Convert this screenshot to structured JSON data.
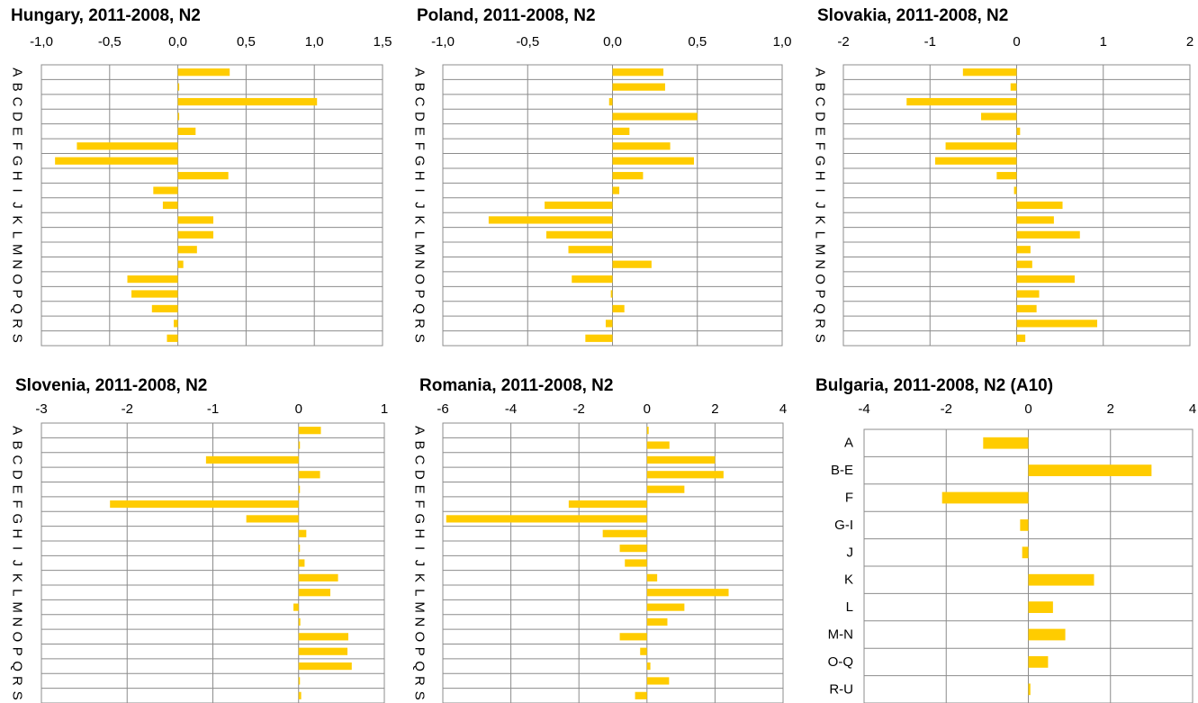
{
  "bar_color": "#FFCC00",
  "grid_color": "#8c8c8c",
  "chart_data": [
    {
      "type": "bar",
      "orientation": "horizontal",
      "title": "Hungary, 2011-2008, N2",
      "categories": [
        "A",
        "B",
        "C",
        "D",
        "E",
        "F",
        "G",
        "H",
        "I",
        "J",
        "K",
        "L",
        "M",
        "N",
        "O",
        "P",
        "Q",
        "R",
        "S"
      ],
      "values": [
        0.38,
        0.01,
        1.02,
        0.0,
        0.13,
        -0.74,
        -0.9,
        0.37,
        -0.18,
        -0.11,
        0.26,
        0.26,
        0.14,
        0.04,
        -0.37,
        -0.34,
        -0.19,
        -0.03,
        -0.08
      ],
      "xlim": [
        -1.0,
        1.5
      ],
      "xticks": [
        -1.0,
        -0.5,
        0.0,
        0.5,
        1.0,
        1.5
      ],
      "xtick_labels": [
        "-1,0",
        "-0,5",
        "0,0",
        "0,5",
        "1,0",
        "1,5"
      ],
      "grid": true
    },
    {
      "type": "bar",
      "orientation": "horizontal",
      "title": "Poland, 2011-2008, N2",
      "categories": [
        "A",
        "B",
        "C",
        "D",
        "E",
        "F",
        "G",
        "H",
        "I",
        "J",
        "K",
        "L",
        "M",
        "N",
        "O",
        "P",
        "Q",
        "R",
        "S"
      ],
      "values": [
        0.3,
        0.31,
        -0.02,
        0.5,
        0.1,
        0.34,
        0.48,
        0.18,
        0.04,
        -0.4,
        -0.73,
        -0.39,
        -0.26,
        0.23,
        -0.24,
        -0.01,
        0.07,
        -0.04,
        -0.16
      ],
      "xlim": [
        -1.0,
        1.0
      ],
      "xticks": [
        -1.0,
        -0.5,
        0.0,
        0.5,
        1.0
      ],
      "xtick_labels": [
        "-1,0",
        "-0,5",
        "0,0",
        "0,5",
        "1,0"
      ],
      "grid": true
    },
    {
      "type": "bar",
      "orientation": "horizontal",
      "title": "Slovakia, 2011-2008, N2",
      "categories": [
        "A",
        "B",
        "C",
        "D",
        "E",
        "F",
        "G",
        "H",
        "I",
        "J",
        "K",
        "L",
        "M",
        "N",
        "O",
        "P",
        "Q",
        "R",
        "S"
      ],
      "values": [
        -0.62,
        -0.07,
        -1.27,
        -0.41,
        0.04,
        -0.82,
        -0.94,
        -0.23,
        -0.03,
        0.53,
        0.43,
        0.73,
        0.16,
        0.18,
        0.67,
        0.26,
        0.23,
        0.93,
        0.1
      ],
      "xlim": [
        -2,
        2
      ],
      "xticks": [
        -2,
        -1,
        0,
        1,
        2
      ],
      "xtick_labels": [
        "-2",
        "-1",
        "0",
        "1",
        "2"
      ],
      "grid": true
    },
    {
      "type": "bar",
      "orientation": "horizontal",
      "title": "Slovenia, 2011-2008, N2",
      "categories": [
        "A",
        "B",
        "C",
        "D",
        "E",
        "F",
        "G",
        "H",
        "I",
        "J",
        "K",
        "L",
        "M",
        "N",
        "O",
        "P",
        "Q",
        "R",
        "S"
      ],
      "values": [
        0.26,
        0.01,
        -1.08,
        0.25,
        0.01,
        -2.2,
        -0.61,
        0.09,
        0.0,
        0.07,
        0.46,
        0.37,
        -0.06,
        0.02,
        0.58,
        0.57,
        0.62,
        0.01,
        0.03
      ],
      "xlim": [
        -3,
        1
      ],
      "xticks": [
        -3,
        -2,
        -1,
        0,
        1
      ],
      "xtick_labels": [
        "-3",
        "-2",
        "-1",
        "0",
        "1"
      ],
      "grid": true
    },
    {
      "type": "bar",
      "orientation": "horizontal",
      "title": "Romania, 2011-2008, N2",
      "categories": [
        "A",
        "B",
        "C",
        "D",
        "E",
        "F",
        "G",
        "H",
        "I",
        "J",
        "K",
        "L",
        "M",
        "N",
        "O",
        "P",
        "Q",
        "R",
        "S"
      ],
      "values": [
        0.05,
        0.66,
        2.0,
        2.25,
        1.1,
        -2.3,
        -5.9,
        -1.3,
        -0.8,
        -0.65,
        0.3,
        2.4,
        1.1,
        0.6,
        -0.8,
        -0.2,
        0.1,
        0.65,
        -0.35
      ],
      "xlim": [
        -6,
        4
      ],
      "xticks": [
        -6,
        -4,
        -2,
        0,
        2,
        4
      ],
      "xtick_labels": [
        "-6",
        "-4",
        "-2",
        "0",
        "2",
        "4"
      ],
      "grid": true
    },
    {
      "type": "bar",
      "orientation": "horizontal",
      "title": "Bulgaria, 2011-2008, N2 (A10)",
      "categories": [
        "A",
        "B-E",
        "F",
        "G-I",
        "J",
        "K",
        "L",
        "M-N",
        "O-Q",
        "R-U"
      ],
      "values": [
        -1.1,
        3.0,
        -2.1,
        -0.2,
        -0.15,
        1.6,
        0.6,
        0.9,
        0.48,
        0.05
      ],
      "xlim": [
        -4,
        4
      ],
      "xticks": [
        -4,
        -2,
        0,
        2,
        4
      ],
      "xtick_labels": [
        "-4",
        "-2",
        "0",
        "2",
        "4"
      ],
      "grid": true
    }
  ]
}
